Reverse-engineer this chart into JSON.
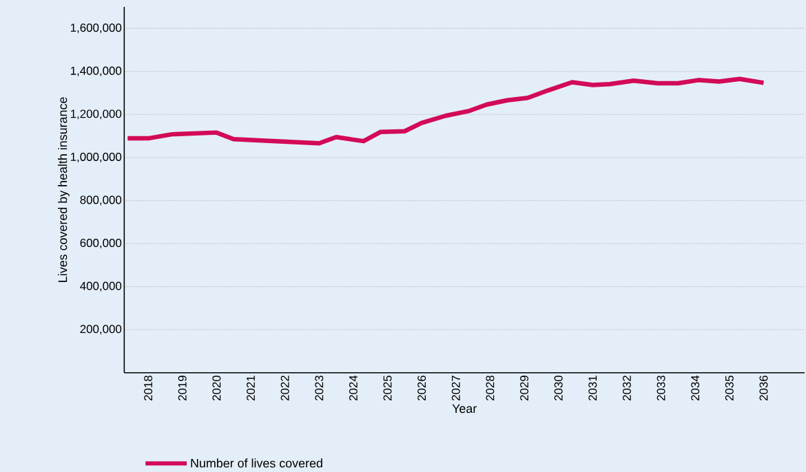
{
  "chart_data": {
    "type": "line",
    "xlabel": "Year",
    "ylabel": "Lives covered by health insurance",
    "x": [
      2017.4,
      2018.0,
      2018.7,
      2020.0,
      2020.5,
      2023.0,
      2023.5,
      2024.3,
      2024.8,
      2025.5,
      2026.0,
      2026.7,
      2027.4,
      2027.9,
      2028.5,
      2029.1,
      2029.7,
      2030.4,
      2031.0,
      2031.5,
      2032.2,
      2032.9,
      2033.5,
      2034.1,
      2034.7,
      2035.3,
      2036.0
    ],
    "series": [
      {
        "name": "Number of lives covered",
        "color": "#d20a57",
        "values": [
          1089000,
          1089000,
          1108000,
          1116000,
          1085000,
          1066000,
          1095000,
          1076000,
          1119000,
          1122000,
          1161000,
          1194000,
          1217000,
          1246000,
          1266000,
          1277000,
          1312000,
          1350000,
          1337000,
          1341000,
          1357000,
          1345000,
          1345000,
          1360000,
          1353000,
          1365000,
          1347000
        ]
      }
    ],
    "xlim": [
      2017.3,
      2037.2
    ],
    "ylim": [
      0,
      1700000
    ],
    "xticks": [
      2018,
      2019,
      2020,
      2021,
      2022,
      2023,
      2024,
      2025,
      2026,
      2027,
      2028,
      2029,
      2030,
      2031,
      2032,
      2033,
      2034,
      2035,
      2036
    ],
    "yticks": [
      {
        "value": 200000,
        "label": "200,000"
      },
      {
        "value": 400000,
        "label": "400,000"
      },
      {
        "value": 600000,
        "label": "600,000"
      },
      {
        "value": 800000,
        "label": "800,000"
      },
      {
        "value": 1000000,
        "label": "1,000,000"
      },
      {
        "value": 1200000,
        "label": "1,200,000"
      },
      {
        "value": 1400000,
        "label": "1,400,000"
      },
      {
        "value": 1600000,
        "label": "1,600,000"
      }
    ],
    "grid": "y",
    "legend": "bottom",
    "marker": "none",
    "line_style": "solid"
  }
}
